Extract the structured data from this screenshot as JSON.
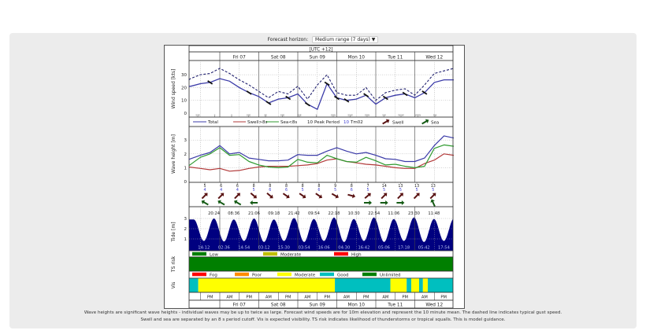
{
  "header": {
    "forecast_horizon_label": "Forecast horizon:",
    "forecast_horizon_value": "Medium range (7 days)",
    "dropdown_icon": "triangle-down-icon"
  },
  "timezone_label": "[UTC +12]",
  "days": [
    "Fri 07",
    "Sat 08",
    "Sun 09",
    "Mon 10",
    "Tue 11",
    "Wed 12"
  ],
  "ampm": [
    "",
    "PM",
    "AM",
    "PM",
    "AM",
    "PM",
    "AM",
    "PM",
    "AM",
    "PM",
    "AM",
    "PM",
    "AM",
    "PM"
  ],
  "colors": {
    "total": "#3b3ba8",
    "swell": "#b23a3a",
    "sea": "#2f9a2f",
    "gust": "#20206e",
    "tide_fill": "#000080",
    "swell_arrow": "#5a1414",
    "sea_arrow": "#145a14"
  },
  "chart_data": [
    {
      "type": "line",
      "ylabel": "Wind speed [kts]",
      "ylim": [
        0,
        38
      ],
      "yticks": [
        "0",
        "10",
        "20",
        "30"
      ],
      "grid": true,
      "series": [
        {
          "name": "",
          "style": "solid",
          "x": [
            "Thu 06 05:00",
            "Thu 06 06:00",
            "Thu 06 12:00",
            "Thu 06 18:00",
            "Fri 07 00:00",
            "Fri 07 06:00",
            "Fri 07 12:00",
            "Fri 07 18:00",
            "Sat 08 00:00",
            "Sat 08 06:00",
            "Sat 08 12:00",
            "Sat 08 18:00",
            "Sun 09 00:00",
            "Sun 09 06:00",
            "Sun 09 12:00",
            "Sun 09 18:00",
            "Mon 10 00:00",
            "Mon 10 06:00",
            "Mon 10 12:00",
            "Mon 10 18:00",
            "Tue 11 00:00",
            "Tue 11 06:00",
            "Tue 11 12:00",
            "Tue 11 18:00",
            "Wed 12 00:00",
            "Wed 12 06:00",
            "Wed 12 12:00",
            "Wed 12 18:00",
            "Wed 12 24:00"
          ],
          "values": [
            21,
            21,
            23,
            24,
            27,
            25,
            20,
            16,
            13,
            8,
            11,
            12,
            15,
            7,
            3,
            23,
            12,
            10,
            11,
            14,
            7,
            12,
            14,
            15,
            12,
            16,
            24,
            26,
            26
          ]
        },
        {
          "name": "",
          "style": "dashed",
          "x": [
            "Thu 06 05:00",
            "Thu 06 06:00",
            "Thu 06 12:00",
            "Thu 06 18:00",
            "Fri 07 00:00",
            "Fri 07 06:00",
            "Fri 07 12:00",
            "Fri 07 18:00",
            "Sat 08 00:00",
            "Sat 08 06:00",
            "Sat 08 12:00",
            "Sat 08 18:00",
            "Sun 09 00:00",
            "Sun 09 06:00",
            "Sun 09 12:00",
            "Sun 09 18:00",
            "Mon 10 00:00",
            "Mon 10 06:00",
            "Mon 10 12:00",
            "Mon 10 18:00",
            "Tue 11 00:00",
            "Tue 11 06:00",
            "Tue 11 12:00",
            "Tue 11 18:00",
            "Wed 12 00:00",
            "Wed 12 06:00",
            "Wed 12 12:00",
            "Wed 12 18:00",
            "Wed 12 24:00"
          ],
          "values": [
            26,
            27,
            30,
            31,
            35,
            31,
            26,
            22,
            17,
            12,
            17,
            15,
            21,
            11,
            22,
            30,
            16,
            14,
            14,
            20,
            10,
            16,
            18,
            19,
            14,
            22,
            31,
            33,
            35
          ]
        }
      ],
      "direction_labels": [
        "SSE",
        "S",
        "S",
        "SSE",
        "SE",
        "SSE",
        "SSE",
        "S",
        "SSW",
        "SSW",
        "SSW",
        "SW",
        "WSW",
        "WSW",
        "SW"
      ]
    },
    {
      "type": "line",
      "ylabel": "Wave height [m]",
      "ylim": [
        0,
        3.8
      ],
      "yticks": [
        "0",
        "1",
        "2",
        "3"
      ],
      "grid": true,
      "legend": {
        "total": "Total",
        "swell": "Swell>8s",
        "sea": "Sea<8s",
        "peak_num": "10",
        "peak_label": "Peak Period",
        "tm_num": "10",
        "tm_label": "Tm02",
        "swell_arrow": "Swell",
        "sea_arrow": "Sea"
      },
      "x": [
        "Thu 06 05:00",
        "Thu 06 12:00",
        "Thu 06 18:00",
        "Fri 07 00:00",
        "Fri 07 06:00",
        "Fri 07 12:00",
        "Fri 07 18:00",
        "Sat 08 00:00",
        "Sat 08 06:00",
        "Sat 08 12:00",
        "Sat 08 18:00",
        "Sun 09 00:00",
        "Sun 09 06:00",
        "Sun 09 12:00",
        "Sun 09 18:00",
        "Mon 10 00:00",
        "Mon 10 06:00",
        "Mon 10 12:00",
        "Mon 10 18:00",
        "Tue 11 00:00",
        "Tue 11 06:00",
        "Tue 11 12:00",
        "Tue 11 18:00",
        "Wed 12 00:00",
        "Wed 12 06:00",
        "Wed 12 12:00",
        "Wed 12 18:00",
        "Wed 12 24:00"
      ],
      "series": [
        {
          "name": "Total",
          "values": [
            1.6,
            1.9,
            2.1,
            2.6,
            2.0,
            2.1,
            1.7,
            1.6,
            1.5,
            1.5,
            1.55,
            1.95,
            1.9,
            1.9,
            2.2,
            2.45,
            2.2,
            2.0,
            2.1,
            1.9,
            1.65,
            1.6,
            1.45,
            1.45,
            1.7,
            2.6,
            3.3,
            3.15
          ]
        },
        {
          "name": "Swell>8s",
          "values": [
            1.05,
            0.95,
            0.85,
            0.95,
            0.75,
            0.8,
            0.95,
            1.05,
            1.1,
            1.1,
            1.1,
            1.15,
            1.2,
            1.3,
            1.55,
            1.65,
            1.45,
            1.35,
            1.25,
            1.2,
            1.1,
            1.0,
            0.95,
            0.95,
            1.3,
            1.55,
            2.0,
            1.9
          ]
        },
        {
          "name": "Sea<8s",
          "values": [
            1.15,
            1.75,
            2.0,
            2.45,
            1.9,
            1.95,
            1.45,
            1.2,
            1.05,
            1.0,
            1.05,
            1.6,
            1.4,
            1.35,
            1.9,
            1.65,
            1.45,
            1.4,
            1.75,
            1.5,
            1.2,
            1.25,
            1.1,
            1.0,
            1.1,
            2.4,
            2.65,
            2.55
          ]
        }
      ]
    },
    {
      "type": "table",
      "x": [
        "Thu 06 15:00",
        "Fri 07 00:30",
        "Fri 07 10:30",
        "Fri 07 21:00",
        "Sat 08 07:00",
        "Sat 08 17:00",
        "Sun 09 02:30",
        "Sun 09 13:00",
        "Mon 10 00:00",
        "Mon 10 09:30",
        "Mon 10 19:00",
        "Tue 11 05:00",
        "Tue 11 15:00",
        "Wed 12 00:30",
        "Wed 12 11:00"
      ],
      "peak_period": [
        "5",
        "6",
        "6",
        "8",
        "8",
        "8",
        "8",
        "8",
        "9",
        "8",
        "7",
        "14",
        "13",
        "13",
        "13"
      ],
      "tm02": [
        "4",
        "4",
        "4",
        "5",
        "6",
        "6",
        "5",
        "6",
        "5",
        "6",
        "5",
        "5",
        "5",
        "5",
        "5"
      ],
      "swell_dir_deg": [
        45,
        45,
        45,
        -40,
        -40,
        -35,
        -35,
        -35,
        -30,
        -15,
        40,
        45,
        45,
        45,
        45
      ],
      "sea_dir_deg": [
        150,
        150,
        150,
        180,
        null,
        null,
        null,
        null,
        null,
        null,
        0,
        0,
        0,
        null,
        115
      ]
    },
    {
      "type": "area",
      "ylabel": "Tide [m]",
      "ylim": [
        0,
        3.2
      ],
      "yticks": [
        "1",
        "2",
        "3"
      ],
      "high_tides": [
        {
          "t": "Thu 06 20:24",
          "label": "20:24",
          "h": 3.0
        },
        {
          "t": "Fri 07 08:36",
          "label": "08:36",
          "h": 2.9
        },
        {
          "t": "Fri 07 21:06",
          "label": "21:06",
          "h": 3.0
        },
        {
          "t": "Sat 08 09:18",
          "label": "09:18",
          "h": 2.9
        },
        {
          "t": "Sat 08 21:42",
          "label": "21:42",
          "h": 3.05
        },
        {
          "t": "Sun 09 09:54",
          "label": "09:54",
          "h": 2.95
        },
        {
          "t": "Sun 09 22:18",
          "label": "22:18",
          "h": 3.1
        },
        {
          "t": "Mon 10 10:30",
          "label": "10:30",
          "h": 2.95
        },
        {
          "t": "Mon 10 22:54",
          "label": "22:54",
          "h": 3.1
        },
        {
          "t": "Tue 11 11:06",
          "label": "11:06",
          "h": 2.95
        },
        {
          "t": "Tue 11 23:30",
          "label": "23:30",
          "h": 3.1
        },
        {
          "t": "Wed 12 11:48",
          "label": "11:48",
          "h": 2.95
        }
      ],
      "low_tides": [
        {
          "t": "Thu 06 14:12",
          "label": "14:12",
          "h": 0.8
        },
        {
          "t": "Fri 07 02:36",
          "label": "02:36",
          "h": 0.75
        },
        {
          "t": "Fri 07 14:54",
          "label": "14:54",
          "h": 0.8
        },
        {
          "t": "Sat 08 03:12",
          "label": "03:12",
          "h": 0.7
        },
        {
          "t": "Sat 08 15:30",
          "label": "15:30",
          "h": 0.8
        },
        {
          "t": "Sun 09 03:54",
          "label": "03:54",
          "h": 0.7
        },
        {
          "t": "Sun 09 16:06",
          "label": "16:06",
          "h": 0.8
        },
        {
          "t": "Mon 10 04:30",
          "label": "04:30",
          "h": 0.7
        },
        {
          "t": "Mon 10 16:42",
          "label": "16:42",
          "h": 0.8
        },
        {
          "t": "Tue 11 05:06",
          "label": "05:06",
          "h": 0.7
        },
        {
          "t": "Tue 11 17:18",
          "label": "17:18",
          "h": 0.8
        },
        {
          "t": "Wed 12 05:42",
          "label": "05:42",
          "h": 0.7
        },
        {
          "t": "Wed 12 17:54",
          "label": "17:54",
          "h": 0.8
        }
      ]
    },
    {
      "type": "heatmap",
      "ylabel": "TS risk",
      "legend": [
        {
          "label": "Low",
          "color": "#007f00"
        },
        {
          "label": "Moderate",
          "color": "#bfbf00"
        },
        {
          "label": "High",
          "color": "#ff0000"
        }
      ],
      "segments": [
        {
          "start": "Thu 06 05:00",
          "end": "Wed 12 24:00",
          "category": "Low"
        }
      ]
    },
    {
      "type": "heatmap",
      "ylabel": "Vis",
      "legend": [
        {
          "label": "Fog",
          "color": "#ff0000"
        },
        {
          "label": "Poor",
          "color": "#ff8c00"
        },
        {
          "label": "Moderate",
          "color": "#ffff00"
        },
        {
          "label": "Good",
          "color": "#00bfbf"
        },
        {
          "label": "Unlimited",
          "color": "#007f00"
        }
      ],
      "segments": [
        {
          "start": "Thu 06 05:00",
          "end": "Thu 06 10:45",
          "category": "Good"
        },
        {
          "start": "Thu 06 10:45",
          "end": "Sun 09 22:50",
          "category": "Moderate"
        },
        {
          "start": "Sun 09 22:50",
          "end": "Tue 11 09:00",
          "category": "Good"
        },
        {
          "start": "Tue 11 09:00",
          "end": "Tue 11 19:00",
          "category": "Moderate"
        },
        {
          "start": "Tue 11 19:00",
          "end": "Tue 11 21:50",
          "category": "Good"
        },
        {
          "start": "Tue 11 21:50",
          "end": "Wed 12 02:40",
          "category": "Moderate"
        },
        {
          "start": "Wed 12 02:40",
          "end": "Wed 12 05:00",
          "category": "Good"
        },
        {
          "start": "Wed 12 05:00",
          "end": "Wed 12 08:00",
          "category": "Moderate"
        },
        {
          "start": "Wed 12 08:00",
          "end": "Wed 12 24:00",
          "category": "Good"
        }
      ]
    }
  ],
  "footer": {
    "line1": "Wave heights are significant wave heights - individual waves may be up to twice as large. Forecast wind speeds are for 10m elevation and represent the 10 minute mean. The dashed line indicates typical gust speed.",
    "line2": "Swell and sea are separated by an 8 s period cutoff. Vis is expected visibility. TS risk indicates likelihood of thunderstorms or tropical squalls. This is model guidance."
  }
}
